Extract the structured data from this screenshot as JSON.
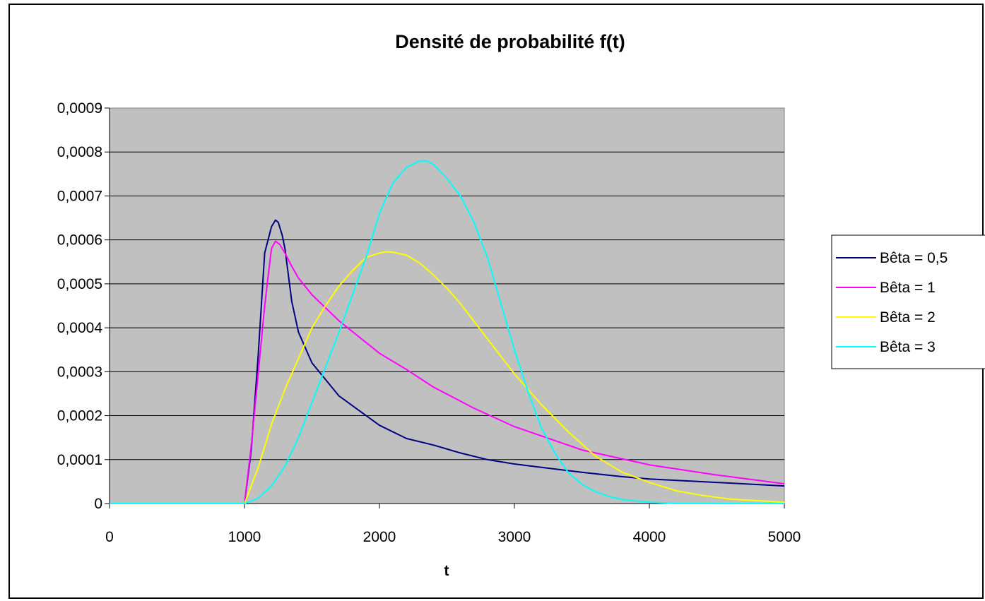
{
  "chart_data": {
    "type": "line",
    "title": "Densité de probabilité f(t)",
    "xlabel": "t",
    "ylabel": "",
    "xlim": [
      0,
      5000
    ],
    "ylim": [
      0,
      0.0009
    ],
    "x_ticks": [
      0,
      1000,
      2000,
      3000,
      4000,
      5000
    ],
    "x_tick_labels": [
      "0",
      "1000",
      "2000",
      "3000",
      "4000",
      "5000"
    ],
    "y_ticks": [
      0,
      0.0001,
      0.0002,
      0.0003,
      0.0004,
      0.0005,
      0.0006,
      0.0007,
      0.0008,
      0.0009
    ],
    "y_tick_labels": [
      "0",
      "0,0001",
      "0,0002",
      "0,0003",
      "0,0004",
      "0,0005",
      "0,0006",
      "0,0007",
      "0,0008",
      "0,0009"
    ],
    "grid": "horizontal",
    "plot_background": "#c0c0c0",
    "legend_position": "right",
    "series": [
      {
        "name": "Bêta = 0,5",
        "color": "#000080",
        "x": [
          0,
          900,
          1000,
          1050,
          1100,
          1150,
          1200,
          1230,
          1250,
          1280,
          1300,
          1350,
          1400,
          1500,
          1700,
          2000,
          2200,
          2400,
          2600,
          2800,
          3000,
          3500,
          3800,
          4000,
          4500,
          5000
        ],
        "y": [
          0,
          0,
          0,
          0.00012,
          0.00033,
          0.00057,
          0.00063,
          0.000645,
          0.00064,
          0.00061,
          0.00058,
          0.00046,
          0.00039,
          0.00032,
          0.000245,
          0.000178,
          0.000148,
          0.000133,
          0.000115,
          0.0001,
          9e-05,
          7.1e-05,
          6.1e-05,
          5.6e-05,
          4.8e-05,
          4e-05
        ]
      },
      {
        "name": "Bêta = 1",
        "color": "#ff00ff",
        "x": [
          0,
          900,
          1000,
          1050,
          1100,
          1150,
          1180,
          1200,
          1230,
          1260,
          1300,
          1350,
          1400,
          1500,
          1700,
          2000,
          2200,
          2400,
          2700,
          3000,
          3500,
          4000,
          4500,
          5000
        ],
        "y": [
          0,
          0,
          0,
          0.00013,
          0.00029,
          0.00045,
          0.00053,
          0.00058,
          0.000597,
          0.00059,
          0.00057,
          0.00054,
          0.000513,
          0.000475,
          0.000416,
          0.000342,
          0.000305,
          0.000265,
          0.000217,
          0.000175,
          0.000122,
          8.8e-05,
          6.5e-05,
          4.5e-05
        ]
      },
      {
        "name": "Bêta = 2",
        "color": "#ffff00",
        "x": [
          0,
          900,
          1000,
          1100,
          1200,
          1300,
          1400,
          1500,
          1600,
          1700,
          1800,
          1900,
          2000,
          2050,
          2100,
          2200,
          2300,
          2400,
          2500,
          2600,
          2800,
          3000,
          3200,
          3400,
          3600,
          3800,
          4000,
          4200,
          4400,
          4600,
          5000
        ],
        "y": [
          0,
          0,
          0,
          8e-05,
          0.00018,
          0.00026,
          0.00033,
          0.0004,
          0.00045,
          0.000495,
          0.00053,
          0.00056,
          0.00057,
          0.000573,
          0.000572,
          0.000565,
          0.000547,
          0.00052,
          0.00049,
          0.000455,
          0.000375,
          0.000295,
          0.000225,
          0.000163,
          0.000108,
          7.1e-05,
          4.8e-05,
          2.9e-05,
          1.8e-05,
          1e-05,
          3e-06
        ]
      },
      {
        "name": "Bêta = 3",
        "color": "#00ffff",
        "x": [
          0,
          900,
          1000,
          1100,
          1200,
          1300,
          1400,
          1500,
          1600,
          1700,
          1800,
          1900,
          2000,
          2100,
          2200,
          2300,
          2350,
          2400,
          2500,
          2600,
          2700,
          2800,
          2900,
          3000,
          3100,
          3200,
          3300,
          3400,
          3500,
          3600,
          3700,
          3800,
          4000,
          4200,
          5000
        ],
        "y": [
          0,
          0,
          0,
          1.2e-05,
          4e-05,
          8.5e-05,
          0.00015,
          0.00023,
          0.00031,
          0.00039,
          0.000475,
          0.00056,
          0.00066,
          0.00073,
          0.000765,
          0.00078,
          0.00078,
          0.000772,
          0.00074,
          0.0007,
          0.00064,
          0.00056,
          0.000455,
          0.00035,
          0.000255,
          0.000172,
          0.000115,
          7e-05,
          4.4e-05,
          2.7e-05,
          1.6e-05,
          9e-06,
          3e-06,
          0,
          0
        ]
      }
    ]
  }
}
